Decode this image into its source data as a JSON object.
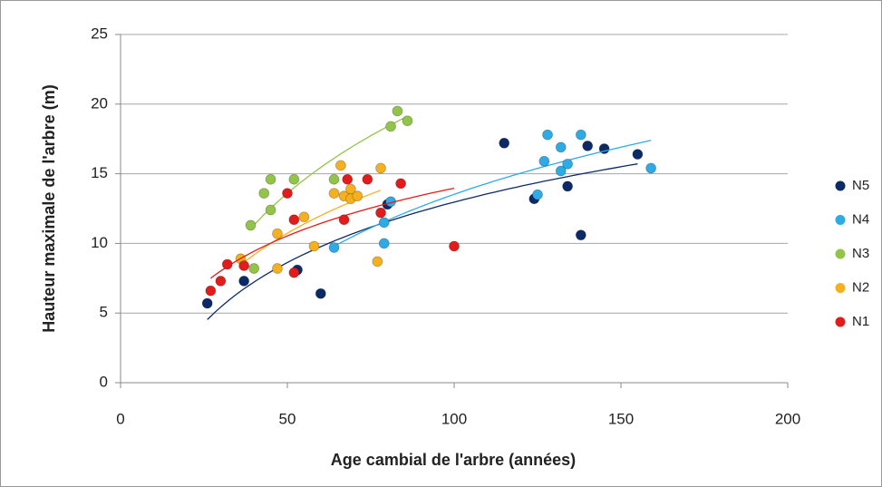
{
  "chart_data": {
    "type": "scatter",
    "x_label": "Age cambial de l'arbre (années)",
    "y_label": "Hauteur maximale  de l'arbre (m)",
    "xlim": [
      0,
      200
    ],
    "xticks": [
      0,
      50,
      100,
      150,
      200
    ],
    "ylim": [
      0,
      25
    ],
    "yticks": [
      0,
      5,
      10,
      15,
      20,
      25
    ],
    "grid": true,
    "legend": "right",
    "trendline": "log",
    "series": [
      {
        "name": "N5",
        "color": "#0b2a66",
        "x": [
          26,
          37,
          53,
          60,
          80,
          115,
          124,
          134,
          138,
          140,
          145,
          155
        ],
        "values": [
          5.7,
          7.3,
          8.1,
          6.4,
          12.8,
          17.2,
          13.2,
          14.1,
          10.6,
          17.0,
          16.8,
          16.4
        ]
      },
      {
        "name": "N4",
        "color": "#2eaae4",
        "x": [
          64,
          79,
          79,
          81,
          125,
          127,
          128,
          132,
          132,
          134,
          138,
          159
        ],
        "values": [
          9.7,
          10.0,
          11.5,
          13.0,
          13.5,
          15.9,
          17.8,
          16.9,
          15.2,
          15.7,
          17.8,
          15.4
        ]
      },
      {
        "name": "N3",
        "color": "#92c44a",
        "x": [
          39,
          40,
          43,
          45,
          45,
          52,
          64,
          81,
          83,
          86
        ],
        "values": [
          11.3,
          8.2,
          13.6,
          14.6,
          12.4,
          14.6,
          14.6,
          18.4,
          19.5,
          18.8
        ]
      },
      {
        "name": "N2",
        "color": "#f5b020",
        "x": [
          36,
          47,
          47,
          55,
          58,
          64,
          66,
          67,
          69,
          69,
          71,
          77,
          78
        ],
        "values": [
          8.9,
          10.7,
          8.2,
          11.9,
          9.8,
          13.6,
          15.6,
          13.4,
          13.9,
          13.2,
          13.4,
          8.7,
          15.4
        ]
      },
      {
        "name": "N1",
        "color": "#e21b1b",
        "x": [
          27,
          30,
          32,
          37,
          50,
          52,
          52,
          67,
          68,
          74,
          78,
          84,
          100
        ],
        "values": [
          6.6,
          7.3,
          8.5,
          8.4,
          13.6,
          11.7,
          7.9,
          11.7,
          14.6,
          14.6,
          12.2,
          14.3,
          9.8
        ]
      }
    ]
  }
}
